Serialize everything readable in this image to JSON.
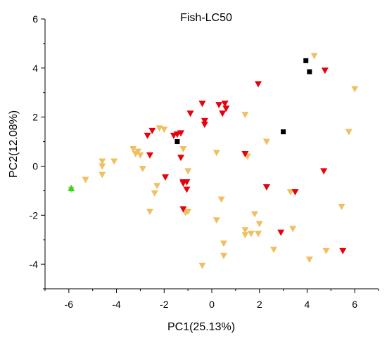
{
  "chart_data": {
    "type": "scatter",
    "title": "Fish-LC50",
    "xlabel": "PC1(25.13%)",
    "ylabel": "PC2(12.08%)",
    "xlim": [
      -7,
      7
    ],
    "ylim": [
      -5,
      6
    ],
    "xticks": [
      -6,
      -4,
      -2,
      0,
      2,
      4,
      6
    ],
    "yticks": [
      -4,
      -2,
      0,
      2,
      4,
      6
    ],
    "xtick_labels": [
      "-6",
      "-4",
      "-2",
      "0",
      "2",
      "4",
      "6"
    ],
    "ytick_labels": [
      "-4",
      "-2",
      "0",
      "2",
      "4",
      "6"
    ],
    "grid": false,
    "legend": "none",
    "series": [
      {
        "marker": "triangle-down",
        "color": "#f0c060",
        "points": [
          [
            -5.9,
            -0.95
          ],
          [
            -5.3,
            -0.55
          ],
          [
            -4.6,
            0.2
          ],
          [
            -4.6,
            0.0
          ],
          [
            -4.6,
            -0.35
          ],
          [
            -4.1,
            0.2
          ],
          [
            -3.3,
            0.7
          ],
          [
            -3.2,
            0.5
          ],
          [
            -3.1,
            0.6
          ],
          [
            -3.0,
            0.45
          ],
          [
            -2.9,
            -0.1
          ],
          [
            -2.4,
            -1.1
          ],
          [
            -2.3,
            -0.8
          ],
          [
            -2.6,
            -1.85
          ],
          [
            -2.2,
            1.55
          ],
          [
            -2.0,
            1.5
          ],
          [
            -1.2,
            0.7
          ],
          [
            -1.0,
            -0.2
          ],
          [
            -1.0,
            -1.85
          ],
          [
            -1.1,
            -1.9
          ],
          [
            -0.4,
            -4.05
          ],
          [
            0.2,
            0.55
          ],
          [
            0.4,
            -1.35
          ],
          [
            0.2,
            -2.2
          ],
          [
            0.5,
            -3.15
          ],
          [
            0.5,
            -3.65
          ],
          [
            1.4,
            2.1
          ],
          [
            1.5,
            0.4
          ],
          [
            1.4,
            -2.6
          ],
          [
            1.4,
            -2.8
          ],
          [
            1.65,
            -2.75
          ],
          [
            1.8,
            -1.95
          ],
          [
            1.95,
            -2.75
          ],
          [
            2.0,
            -2.35
          ],
          [
            2.3,
            1.0
          ],
          [
            2.6,
            -3.4
          ],
          [
            3.3,
            -1.05
          ],
          [
            3.4,
            -2.55
          ],
          [
            4.1,
            -3.8
          ],
          [
            4.3,
            4.5
          ],
          [
            4.8,
            -3.45
          ],
          [
            5.45,
            -1.65
          ],
          [
            5.75,
            1.4
          ],
          [
            6.0,
            3.15
          ]
        ]
      },
      {
        "marker": "triangle-down",
        "color": "#e8000b",
        "points": [
          [
            -2.7,
            1.25
          ],
          [
            -2.5,
            1.45
          ],
          [
            -2.6,
            0.45
          ],
          [
            -1.6,
            1.25
          ],
          [
            -1.45,
            1.3
          ],
          [
            -1.3,
            1.35
          ],
          [
            -1.3,
            0.35
          ],
          [
            -1.95,
            -0.45
          ],
          [
            -1.2,
            -0.65
          ],
          [
            -1.05,
            -0.65
          ],
          [
            -1.05,
            -0.95
          ],
          [
            -1.2,
            -0.7
          ],
          [
            -1.2,
            -1.75
          ],
          [
            -0.9,
            2.15
          ],
          [
            -0.4,
            2.55
          ],
          [
            -0.3,
            1.85
          ],
          [
            -0.3,
            1.7
          ],
          [
            0.3,
            2.5
          ],
          [
            0.55,
            2.55
          ],
          [
            0.6,
            2.35
          ],
          [
            0.45,
            2.15
          ],
          [
            1.4,
            0.5
          ],
          [
            1.95,
            3.35
          ],
          [
            2.3,
            -0.85
          ],
          [
            2.9,
            -2.7
          ],
          [
            3.5,
            -1.05
          ],
          [
            4.7,
            -0.2
          ],
          [
            4.75,
            3.9
          ],
          [
            5.5,
            -3.45
          ]
        ]
      },
      {
        "marker": "square",
        "color": "#000000",
        "points": [
          [
            -1.45,
            1.0
          ],
          [
            3.0,
            1.4
          ],
          [
            3.95,
            4.3
          ],
          [
            4.1,
            3.85
          ]
        ]
      },
      {
        "marker": "triangle-up",
        "color": "#22dd22",
        "points": [
          [
            -5.9,
            -0.9
          ]
        ]
      }
    ]
  }
}
